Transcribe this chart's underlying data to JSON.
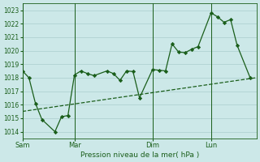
{
  "background_color": "#cce8e8",
  "grid_color": "#aacece",
  "line_color": "#1a5e1a",
  "xlabel": "Pression niveau de la mer( hPa )",
  "ylim": [
    1013.5,
    1023.5
  ],
  "yticks": [
    1014,
    1015,
    1016,
    1017,
    1018,
    1019,
    1020,
    1021,
    1022,
    1023
  ],
  "day_labels": [
    "Sam",
    "Mar",
    "Dim",
    "Lun"
  ],
  "day_positions": [
    0,
    8,
    20,
    29
  ],
  "xlim": [
    0,
    36
  ],
  "line1_x": [
    0,
    36
  ],
  "line1_y": [
    1015.5,
    1018.0
  ],
  "line2_x": [
    0,
    1,
    2,
    3,
    5,
    6,
    7,
    8,
    9,
    10,
    11,
    13,
    14,
    15,
    16,
    17,
    18,
    20,
    21,
    22,
    23,
    24,
    25,
    26,
    27,
    29,
    30,
    31,
    32,
    33,
    35
  ],
  "line2_y": [
    1018.5,
    1018.0,
    1016.1,
    1014.9,
    1014.0,
    1015.1,
    1015.2,
    1018.2,
    1018.5,
    1018.3,
    1018.15,
    1018.5,
    1018.3,
    1017.8,
    1018.5,
    1018.45,
    1016.5,
    1018.6,
    1018.55,
    1018.5,
    1020.5,
    1019.9,
    1019.85,
    1020.1,
    1020.3,
    1022.8,
    1022.5,
    1022.1,
    1022.3,
    1020.4,
    1018.0
  ]
}
